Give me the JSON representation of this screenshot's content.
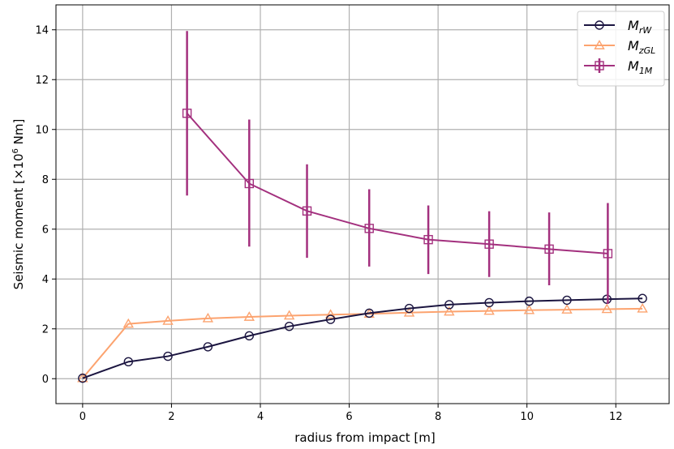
{
  "chart_data": {
    "type": "line",
    "xlabel": "radius from impact [m]",
    "ylabel": "Seismic moment [×10",
    "ylabel_exp": "6",
    "ylabel_unit": " Nm]",
    "xlim": [
      -0.6,
      13.2
    ],
    "ylim": [
      -1.0,
      15.0
    ],
    "xticks": [
      0,
      2,
      4,
      6,
      8,
      10,
      12
    ],
    "yticks": [
      0,
      2,
      4,
      6,
      8,
      10,
      12,
      14
    ],
    "grid": true,
    "legend_position": "top-right",
    "series": [
      {
        "name": "M",
        "name_sub": "rW",
        "color": "#1b1540",
        "marker": "circle",
        "x": [
          0,
          1.03,
          1.92,
          2.82,
          3.75,
          4.65,
          5.58,
          6.45,
          7.35,
          8.25,
          9.15,
          10.05,
          10.9,
          11.8,
          12.6
        ],
        "y": [
          0.02,
          0.68,
          0.9,
          1.28,
          1.72,
          2.1,
          2.38,
          2.63,
          2.82,
          2.97,
          3.05,
          3.11,
          3.15,
          3.19,
          3.22
        ]
      },
      {
        "name": "M",
        "name_sub": "zGL",
        "color": "#fca36f",
        "marker": "triangle",
        "x": [
          0,
          1.03,
          1.92,
          2.82,
          3.75,
          4.65,
          5.58,
          6.45,
          7.35,
          8.25,
          9.15,
          10.05,
          10.9,
          11.8,
          12.6
        ],
        "y": [
          0.02,
          2.2,
          2.32,
          2.42,
          2.48,
          2.53,
          2.57,
          2.6,
          2.65,
          2.69,
          2.72,
          2.75,
          2.77,
          2.79,
          2.81
        ]
      },
      {
        "name": "M",
        "name_sub": "1M",
        "color": "#a3307e",
        "marker": "square",
        "x": [
          2.35,
          3.75,
          5.05,
          6.45,
          7.78,
          9.15,
          10.5,
          11.82
        ],
        "y": [
          10.65,
          7.83,
          6.73,
          6.03,
          5.58,
          5.4,
          5.2,
          5.02
        ],
        "err_low": [
          7.35,
          5.3,
          4.85,
          4.5,
          4.2,
          4.08,
          3.75,
          3.0
        ],
        "err_high": [
          13.95,
          10.4,
          8.6,
          7.6,
          6.95,
          6.72,
          6.67,
          7.05
        ]
      }
    ]
  }
}
